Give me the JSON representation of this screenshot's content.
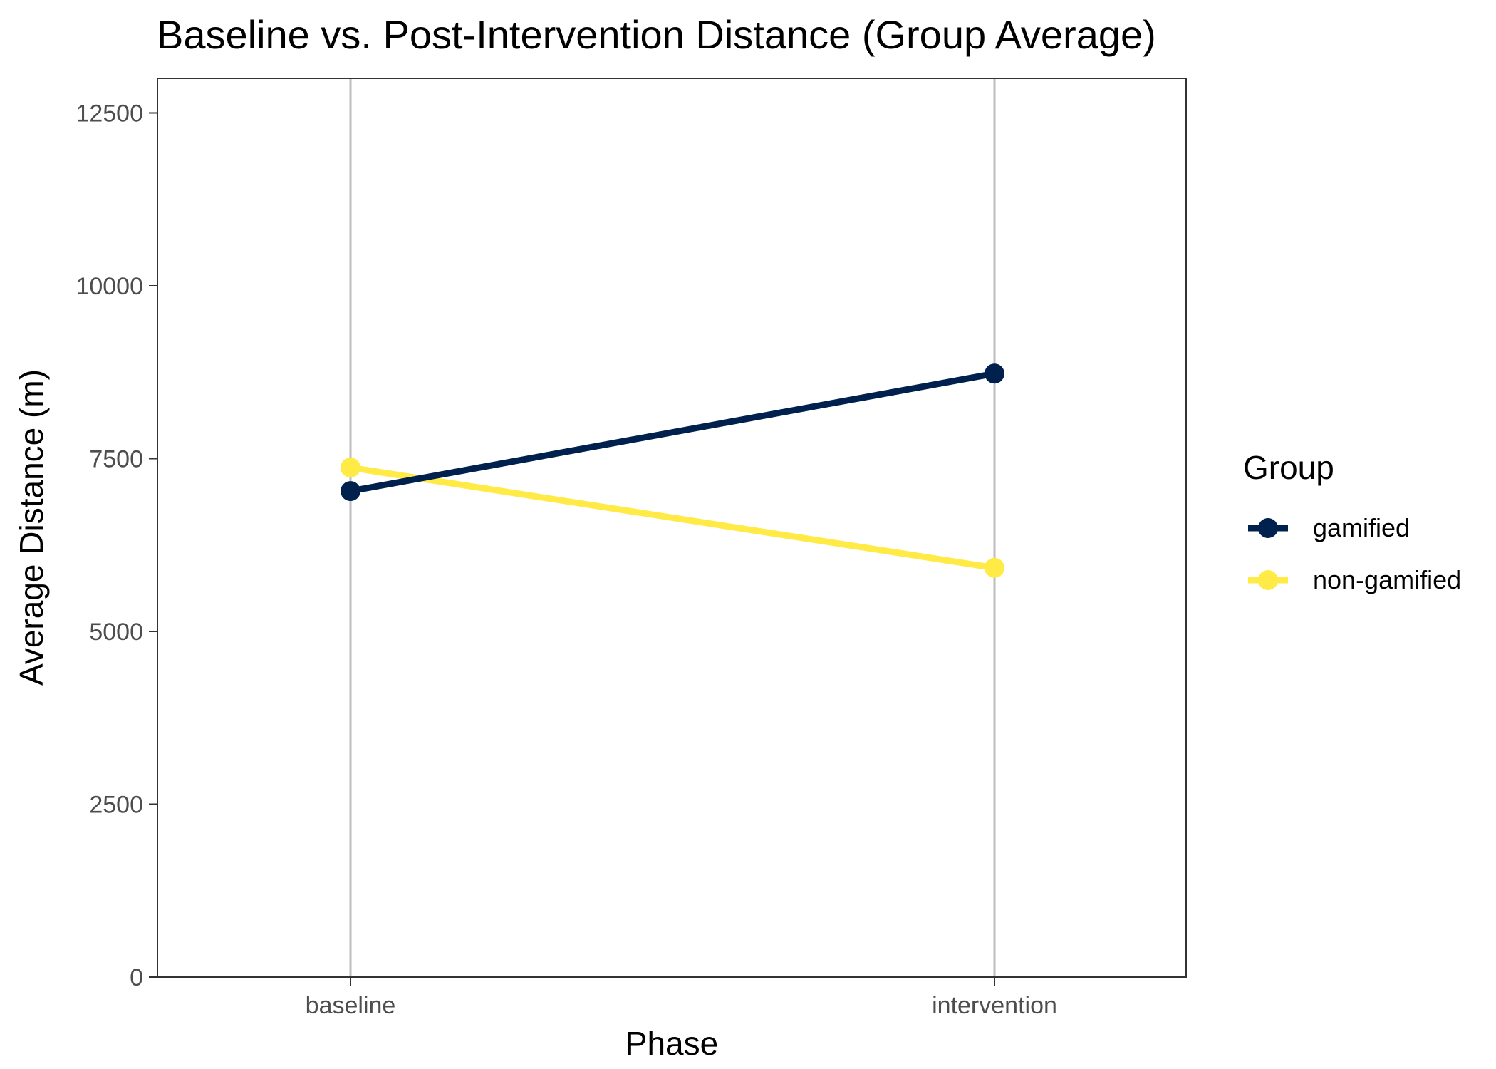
{
  "chart_data": {
    "type": "line",
    "title": "Baseline vs. Post-Intervention Distance (Group Average)",
    "xlabel": "Phase",
    "ylabel": "Average Distance (m)",
    "categories": [
      "baseline",
      "intervention"
    ],
    "ylim": [
      0,
      13000
    ],
    "yticks": [
      0,
      2500,
      5000,
      7500,
      10000,
      12500
    ],
    "ytick_labels": [
      "0",
      "2500",
      "5000",
      "7500",
      "10000",
      "12500"
    ],
    "grid": "vertical major gridlines only",
    "legend": {
      "title": "Group",
      "placement": "right"
    },
    "series": [
      {
        "name": "gamified",
        "color": "#00204D",
        "values": [
          7030,
          8730
        ]
      },
      {
        "name": "non-gamified",
        "color": "#FFEA46",
        "values": [
          7370,
          5920
        ]
      }
    ]
  }
}
